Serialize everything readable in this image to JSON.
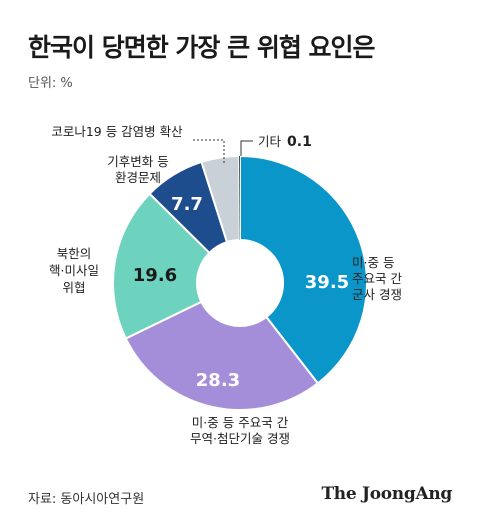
{
  "title": "한국이 당면한 가장 큰 위협 요인은",
  "unit_label": "단위: %",
  "source": "자료: 동아시아연구원",
  "brand": "The JoongAng",
  "chart_data": {
    "type": "pie",
    "donut": true,
    "title": "한국이 당면한 가장 큰 위협 요인은",
    "unit": "%",
    "slices": [
      {
        "label_lines": [
          "미·중 등",
          "주요국 간",
          "군사 경쟁"
        ],
        "value": 39.5,
        "color": "#0a96c8"
      },
      {
        "label_lines": [
          "미·중 등 주요국 간",
          "무역·첨단기술 경쟁"
        ],
        "value": 28.3,
        "color": "#a58ed9"
      },
      {
        "label_lines": [
          "북한의",
          "핵·미사일",
          "위협"
        ],
        "value": 19.6,
        "color": "#6dd3bf"
      },
      {
        "label_lines": [
          "기후변화 등",
          "환경문제"
        ],
        "value": 7.7,
        "color": "#1d4d8c"
      },
      {
        "label_lines": [
          "코로나19 등 감염병 확산"
        ],
        "value": 4.8,
        "color": "#c9d0d7"
      },
      {
        "label_lines": [
          "기타"
        ],
        "value": 0.1,
        "color": "#1a1a1a"
      }
    ]
  }
}
